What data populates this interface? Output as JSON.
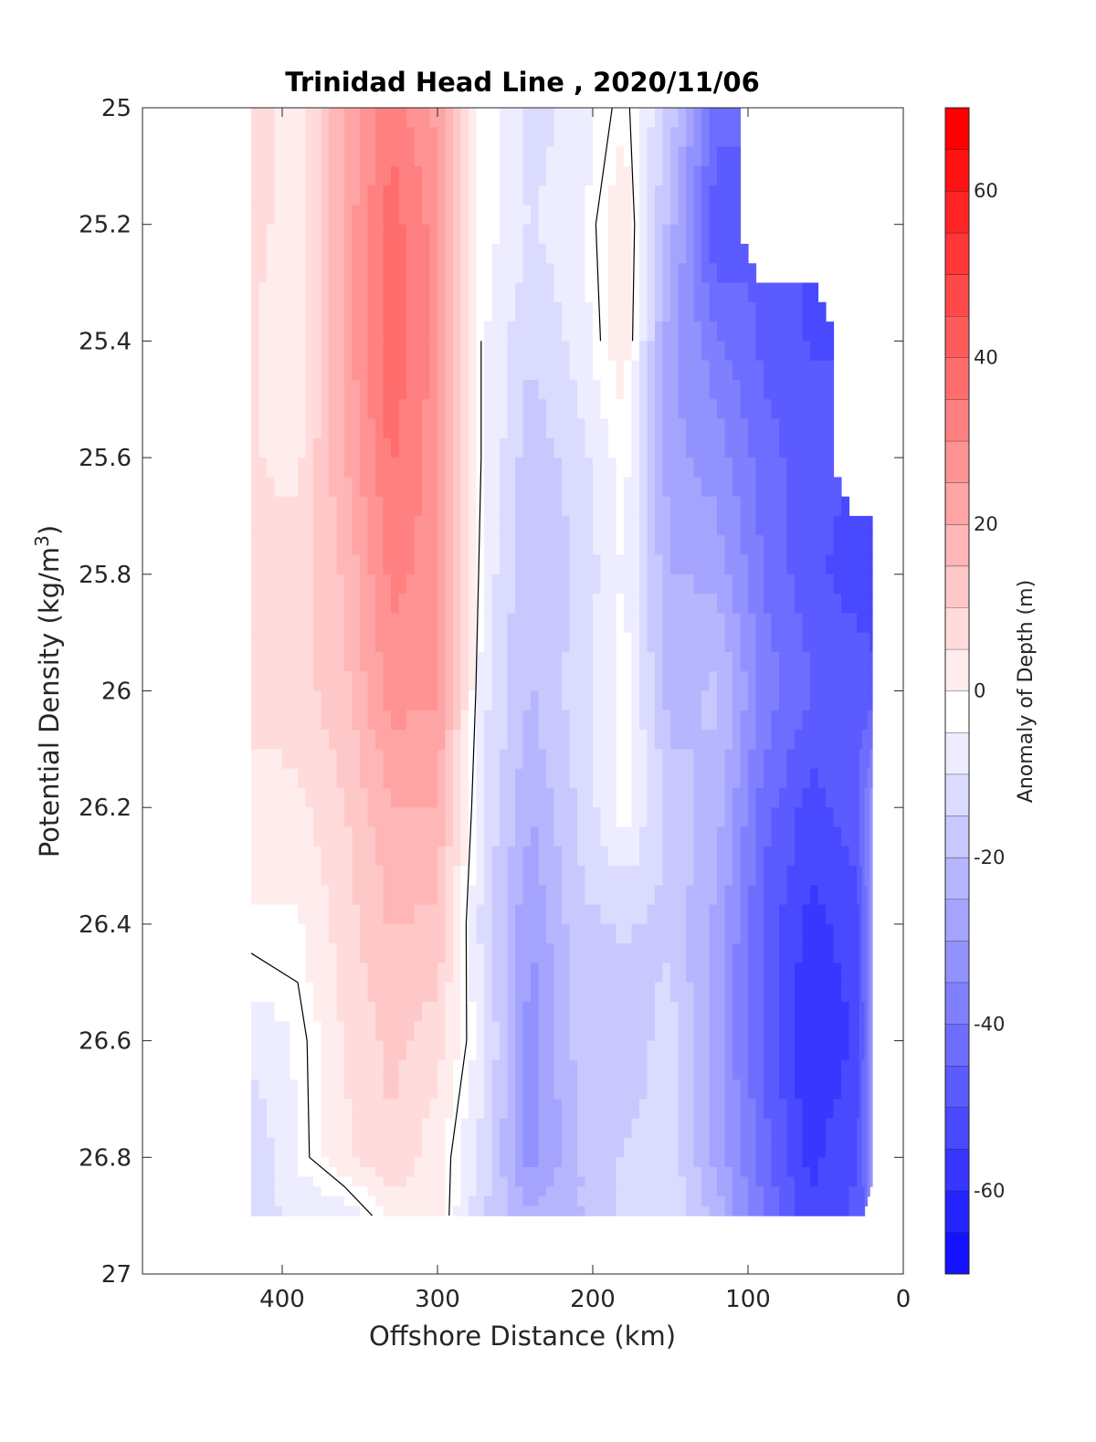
{
  "chart_data": {
    "type": "heatmap",
    "title": "Trinidad Head Line , 2020/11/06",
    "xlabel": "Offshore Distance (km)",
    "ylabel": "Potential Density (kg/m",
    "ylabel_superscript": "3",
    "ylabel_close": ")",
    "colorbar_label": "Anomaly of Depth (m)",
    "xlim": [
      490,
      0
    ],
    "ylim": [
      25,
      27
    ],
    "xticks": [
      400,
      300,
      200,
      100,
      0
    ],
    "yticks": [
      25,
      25.2,
      25.4,
      25.6,
      25.8,
      26,
      26.2,
      26.4,
      26.6,
      26.8,
      27
    ],
    "colorbar_range": [
      -70,
      70
    ],
    "colorbar_step": 5,
    "colorbar_ticks": [
      -60,
      -40,
      -20,
      0,
      20,
      40,
      60
    ],
    "colormap": {
      "negative": "#0000ff",
      "zero": "#ffffff",
      "positive": "#ff0000"
    },
    "x": [
      420,
      390,
      360,
      330,
      300,
      270,
      240,
      210,
      180,
      150,
      120,
      90,
      60,
      30,
      20
    ],
    "y": [
      25.0,
      25.2,
      25.4,
      25.6,
      25.8,
      26.0,
      26.2,
      26.4,
      26.6,
      26.8,
      26.9
    ],
    "z": [
      [
        10,
        5,
        22,
        36,
        26,
        0,
        -10,
        -6,
        2,
        -14,
        -40,
        null,
        null,
        null,
        null
      ],
      [
        10,
        4,
        24,
        40,
        30,
        0,
        -8,
        -4,
        6,
        -20,
        -48,
        null,
        null,
        null,
        null
      ],
      [
        8,
        2,
        24,
        42,
        30,
        -2,
        -12,
        -6,
        6,
        -26,
        -36,
        -44,
        -48,
        null,
        null
      ],
      [
        8,
        6,
        22,
        38,
        30,
        -2,
        -16,
        -10,
        0,
        -26,
        -30,
        -40,
        -46,
        null,
        null
      ],
      [
        8,
        10,
        18,
        34,
        30,
        -4,
        -18,
        -12,
        -2,
        -22,
        -24,
        -38,
        -46,
        -50,
        -50
      ],
      [
        10,
        10,
        16,
        30,
        28,
        -6,
        -18,
        -10,
        0,
        -20,
        -16,
        -34,
        -42,
        -44,
        -46
      ],
      [
        5,
        6,
        12,
        22,
        22,
        -8,
        -22,
        -12,
        0,
        -14,
        -20,
        -40,
        -50,
        -44,
        -30
      ],
      [
        2,
        2,
        10,
        18,
        16,
        -10,
        -28,
        -14,
        -12,
        -14,
        -24,
        -44,
        -54,
        -50,
        -30
      ],
      [
        -6,
        -2,
        8,
        14,
        10,
        -6,
        -30,
        -16,
        -16,
        -10,
        -26,
        -44,
        -58,
        -52,
        -30
      ],
      [
        -12,
        -2,
        6,
        12,
        4,
        -10,
        -30,
        -18,
        -12,
        -10,
        -24,
        -40,
        -54,
        -48,
        -30
      ],
      [
        -10,
        -6,
        -6,
        4,
        4,
        -12,
        -22,
        -18,
        -12,
        -8,
        -20,
        -38,
        -52,
        -46,
        null
      ]
    ],
    "contour_level": 0
  }
}
